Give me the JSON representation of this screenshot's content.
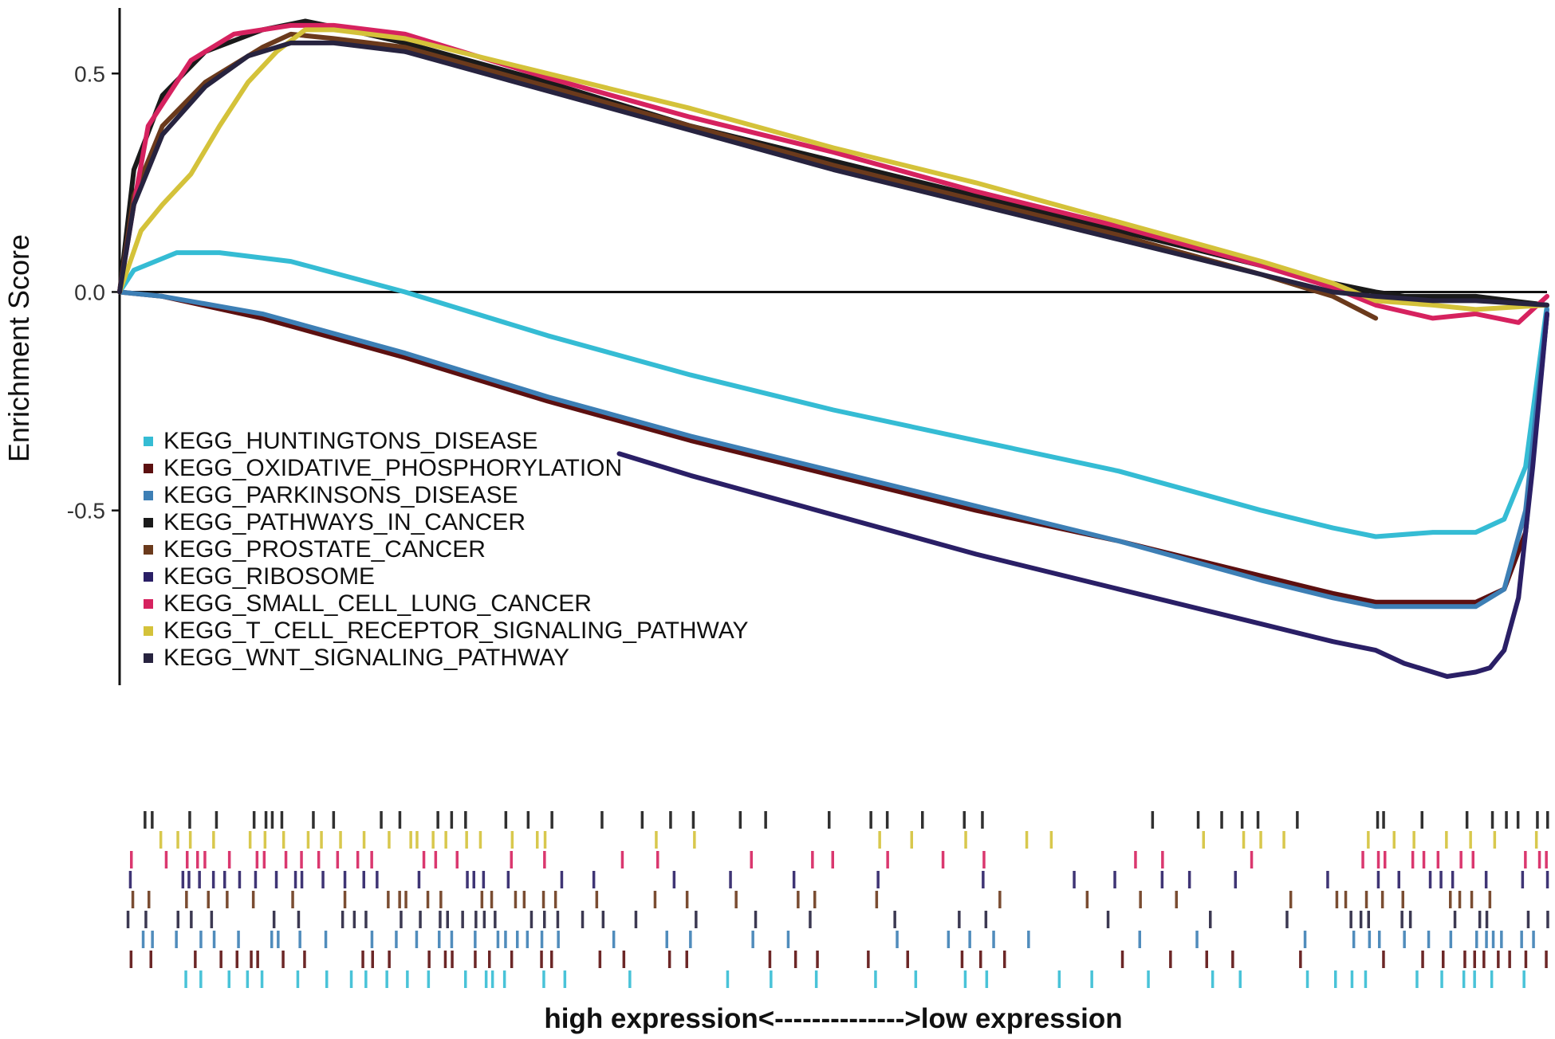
{
  "chart_data": {
    "type": "line",
    "title": "",
    "ylabel": "Enrichment Score",
    "xlabel": "high expression<-------------->low expression",
    "ylim": [
      -0.9,
      0.65
    ],
    "xlim": [
      0,
      1
    ],
    "yticks": [
      0.5,
      0.0,
      -0.5
    ],
    "ytick_labels": [
      "0.5",
      "0.0",
      "-0.5"
    ],
    "grid": false,
    "legend_position": "lower-left",
    "series": [
      {
        "name": "KEGG_HUNTINGTONS_DISEASE",
        "color": "#35bcd4",
        "x": [
          0,
          0.01,
          0.04,
          0.07,
          0.12,
          0.2,
          0.3,
          0.4,
          0.5,
          0.6,
          0.7,
          0.8,
          0.85,
          0.88,
          0.92,
          0.95,
          0.97,
          0.985,
          1.0
        ],
        "y": [
          0,
          0.05,
          0.09,
          0.09,
          0.07,
          0.0,
          -0.1,
          -0.19,
          -0.27,
          -0.34,
          -0.41,
          -0.5,
          -0.54,
          -0.56,
          -0.55,
          -0.55,
          -0.52,
          -0.4,
          -0.03
        ]
      },
      {
        "name": "KEGG_OXIDATIVE_PHOSPHORYLATION",
        "color": "#5c1010",
        "x": [
          0,
          0.03,
          0.1,
          0.2,
          0.3,
          0.4,
          0.5,
          0.6,
          0.7,
          0.8,
          0.85,
          0.88,
          0.92,
          0.95,
          0.97,
          0.985,
          1.0
        ],
        "y": [
          0,
          -0.01,
          -0.06,
          -0.15,
          -0.25,
          -0.34,
          -0.42,
          -0.5,
          -0.57,
          -0.65,
          -0.69,
          -0.71,
          -0.71,
          -0.71,
          -0.68,
          -0.55,
          -0.05
        ]
      },
      {
        "name": "KEGG_PARKINSONS_DISEASE",
        "color": "#3d7fb5",
        "x": [
          0,
          0.03,
          0.1,
          0.2,
          0.3,
          0.4,
          0.5,
          0.6,
          0.7,
          0.8,
          0.85,
          0.88,
          0.92,
          0.95,
          0.97,
          0.985,
          1.0
        ],
        "y": [
          0,
          -0.01,
          -0.05,
          -0.14,
          -0.24,
          -0.33,
          -0.41,
          -0.49,
          -0.57,
          -0.66,
          -0.7,
          -0.72,
          -0.72,
          -0.72,
          -0.68,
          -0.5,
          -0.04
        ]
      },
      {
        "name": "KEGG_PATHWAYS_IN_CANCER",
        "color": "#1a1a1a",
        "x": [
          0,
          0.01,
          0.03,
          0.06,
          0.1,
          0.13,
          0.16,
          0.2,
          0.3,
          0.4,
          0.5,
          0.6,
          0.7,
          0.8,
          0.85,
          0.88,
          0.9,
          0.95,
          1.0
        ],
        "y": [
          0,
          0.28,
          0.45,
          0.55,
          0.6,
          0.62,
          0.6,
          0.57,
          0.48,
          0.38,
          0.3,
          0.22,
          0.14,
          0.06,
          0.02,
          0.0,
          -0.01,
          -0.01,
          -0.03
        ]
      },
      {
        "name": "KEGG_PROSTATE_CANCER",
        "color": "#6b3a1c",
        "x": [
          0,
          0.01,
          0.03,
          0.06,
          0.1,
          0.12,
          0.15,
          0.2,
          0.3,
          0.4,
          0.5,
          0.6,
          0.7,
          0.8,
          0.85,
          0.88
        ],
        "y": [
          0,
          0.22,
          0.38,
          0.48,
          0.56,
          0.59,
          0.58,
          0.56,
          0.47,
          0.38,
          0.29,
          0.21,
          0.13,
          0.04,
          -0.01,
          -0.06
        ]
      },
      {
        "name": "KEGG_RIBOSOME",
        "color": "#2a1f66",
        "x": [
          0.35,
          0.4,
          0.5,
          0.6,
          0.7,
          0.8,
          0.85,
          0.88,
          0.9,
          0.93,
          0.95,
          0.96,
          0.97,
          0.98,
          0.99,
          1.0
        ],
        "y": [
          -0.37,
          -0.42,
          -0.51,
          -0.6,
          -0.68,
          -0.76,
          -0.8,
          -0.82,
          -0.85,
          -0.88,
          -0.87,
          -0.86,
          -0.82,
          -0.7,
          -0.4,
          -0.05
        ]
      },
      {
        "name": "KEGG_SMALL_CELL_LUNG_CANCER",
        "color": "#d6225f",
        "x": [
          0,
          0.01,
          0.02,
          0.05,
          0.08,
          0.12,
          0.15,
          0.2,
          0.3,
          0.4,
          0.5,
          0.6,
          0.7,
          0.8,
          0.85,
          0.88,
          0.92,
          0.95,
          0.98,
          1.0
        ],
        "y": [
          0,
          0.2,
          0.38,
          0.53,
          0.59,
          0.61,
          0.61,
          0.59,
          0.49,
          0.4,
          0.32,
          0.23,
          0.15,
          0.06,
          0.01,
          -0.03,
          -0.06,
          -0.05,
          -0.07,
          -0.01
        ]
      },
      {
        "name": "KEGG_T_CELL_RECEPTOR_SIGNALING_PATHWAY",
        "color": "#d4c23a",
        "x": [
          0,
          0.015,
          0.03,
          0.05,
          0.07,
          0.09,
          0.11,
          0.13,
          0.15,
          0.2,
          0.3,
          0.4,
          0.5,
          0.6,
          0.7,
          0.8,
          0.85,
          0.88,
          0.92,
          0.95,
          1.0
        ],
        "y": [
          0,
          0.14,
          0.2,
          0.27,
          0.38,
          0.48,
          0.55,
          0.6,
          0.6,
          0.58,
          0.5,
          0.42,
          0.33,
          0.25,
          0.16,
          0.07,
          0.02,
          -0.02,
          -0.03,
          -0.04,
          -0.03
        ]
      },
      {
        "name": "KEGG_WNT_SIGNALING_PATHWAY",
        "color": "#27233f",
        "x": [
          0,
          0.01,
          0.03,
          0.06,
          0.09,
          0.12,
          0.15,
          0.2,
          0.3,
          0.4,
          0.5,
          0.6,
          0.7,
          0.8,
          0.85,
          0.88,
          0.92,
          0.95,
          1.0
        ],
        "y": [
          0,
          0.2,
          0.36,
          0.47,
          0.54,
          0.57,
          0.57,
          0.55,
          0.46,
          0.37,
          0.28,
          0.2,
          0.12,
          0.04,
          0.0,
          -0.01,
          -0.02,
          -0.02,
          -0.03
        ]
      }
    ],
    "rug_order": [
      "KEGG_PATHWAYS_IN_CANCER",
      "KEGG_T_CELL_RECEPTOR_SIGNALING_PATHWAY",
      "KEGG_SMALL_CELL_LUNG_CANCER",
      "KEGG_RIBOSOME",
      "KEGG_PROSTATE_CANCER",
      "KEGG_WNT_SIGNALING_PATHWAY",
      "KEGG_PARKINSONS_DISEASE",
      "KEGG_OXIDATIVE_PHOSPHORYLATION",
      "KEGG_HUNTINGTONS_DISEASE"
    ]
  }
}
